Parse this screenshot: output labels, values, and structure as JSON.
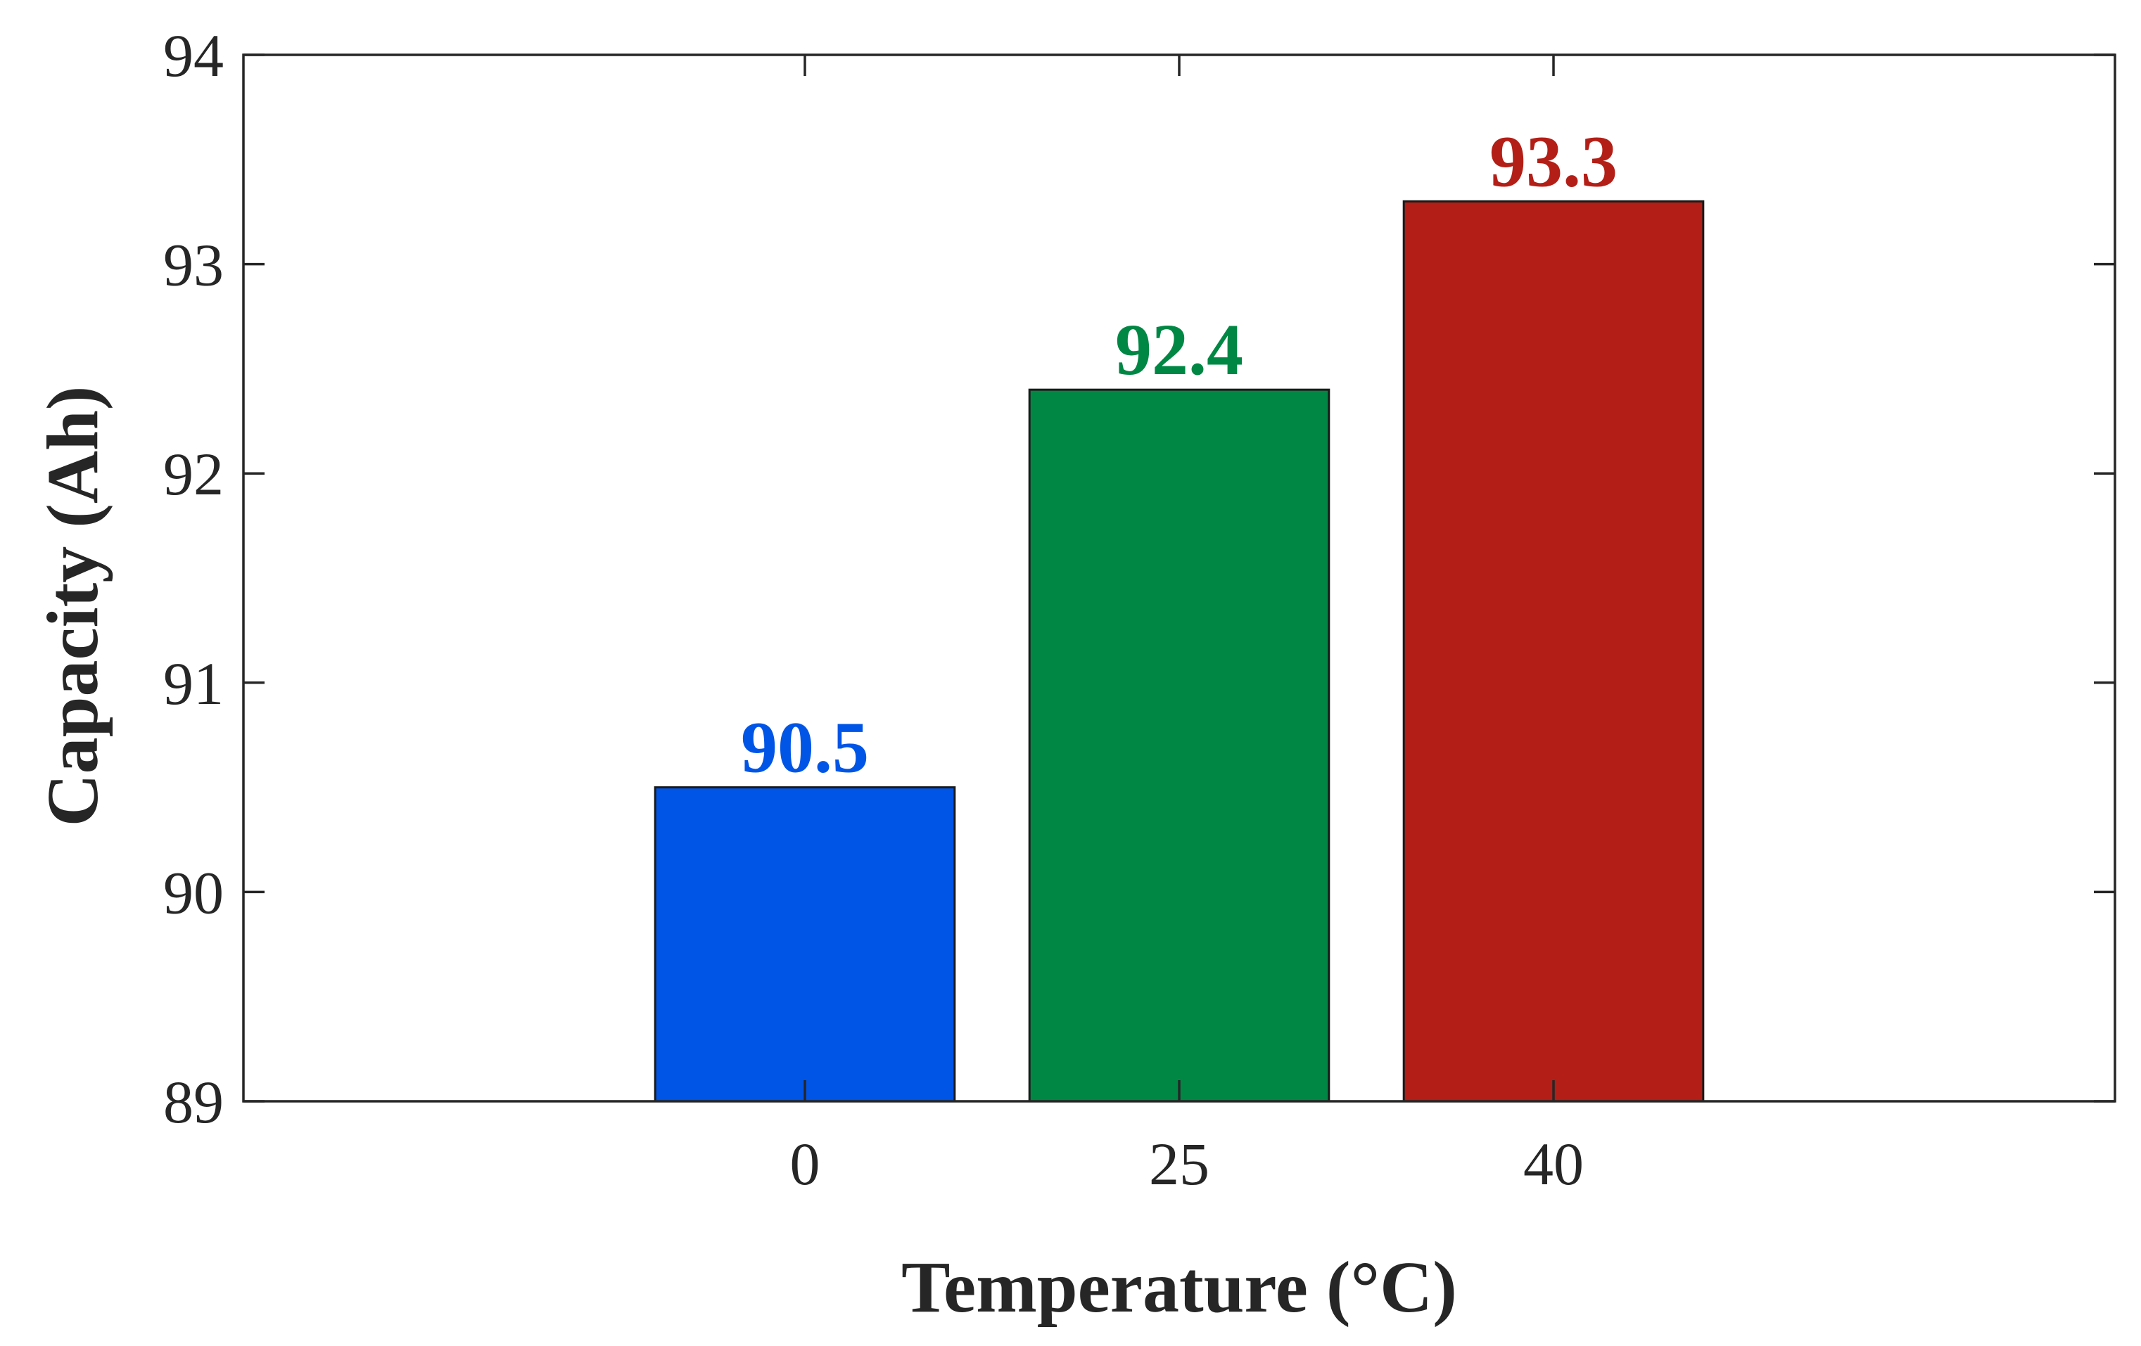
{
  "chart_data": {
    "type": "bar",
    "title": "",
    "xlabel": "Temperature (°C)",
    "ylabel": "Capacity (Ah)",
    "categories": [
      "0",
      "25",
      "40"
    ],
    "values": [
      90.5,
      92.4,
      93.3
    ],
    "value_labels": [
      "90.5",
      "92.4",
      "93.3"
    ],
    "bar_colors": [
      "#0055e6",
      "#008744",
      "#b31e16"
    ],
    "ylim": [
      89,
      94
    ],
    "yticks": [
      89,
      90,
      91,
      92,
      93,
      94
    ],
    "ytick_labels": [
      "89",
      "90",
      "91",
      "92",
      "93",
      "94"
    ],
    "xlim": [
      -1.5,
      3.5
    ],
    "grid": false,
    "box": true
  }
}
